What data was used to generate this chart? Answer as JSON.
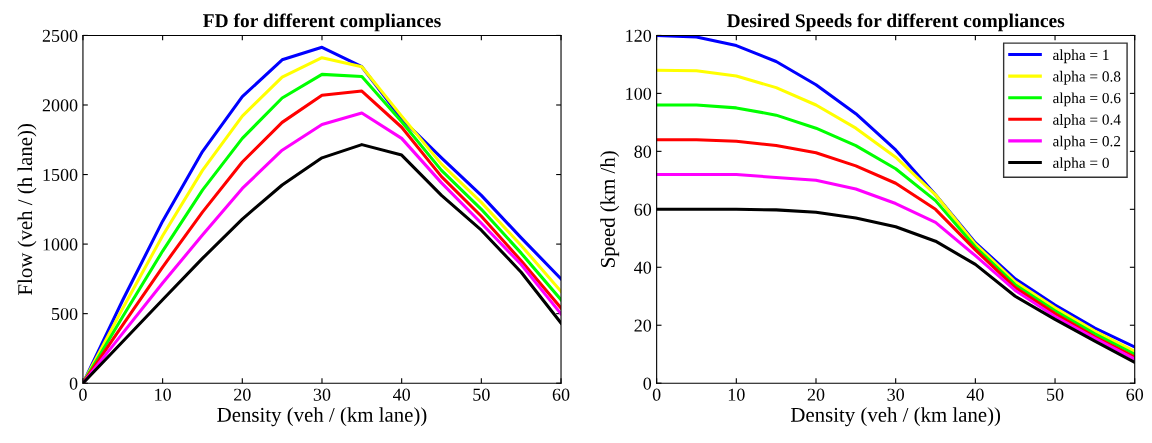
{
  "chart_data": [
    {
      "type": "line",
      "title": "FD for different compliances",
      "xlabel": "Density (veh / (km lane))",
      "ylabel": "Flow (veh / (h lane))",
      "x": [
        0,
        5,
        10,
        15,
        20,
        25,
        30,
        35,
        40,
        45,
        50,
        55,
        60
      ],
      "xlim": [
        0,
        60
      ],
      "xticks": [
        0,
        10,
        20,
        30,
        40,
        50,
        60
      ],
      "ylim": [
        0,
        2500
      ],
      "yticks": [
        0,
        500,
        1000,
        1500,
        2000,
        2500
      ],
      "grid": false,
      "legend": false,
      "series": [
        {
          "color": "#0000ff",
          "values": [
            0,
            598,
            1165,
            1665,
            2060,
            2325,
            2415,
            2275,
            1900,
            1620,
            1350,
            1045,
            750
          ]
        },
        {
          "color": "#ffff00",
          "values": [
            0,
            539,
            1060,
            1530,
            1920,
            2200,
            2340,
            2275,
            1920,
            1575,
            1300,
            990,
            660
          ]
        },
        {
          "color": "#00ff00",
          "values": [
            0,
            480,
            950,
            1388,
            1760,
            2050,
            2220,
            2205,
            1880,
            1530,
            1250,
            935,
            600
          ]
        },
        {
          "color": "#ff0000",
          "values": [
            0,
            420,
            835,
            1230,
            1590,
            1875,
            2070,
            2100,
            1840,
            1485,
            1200,
            880,
            540
          ]
        },
        {
          "color": "#ff00ff",
          "values": [
            0,
            360,
            720,
            1065,
            1400,
            1675,
            1860,
            1943,
            1760,
            1440,
            1150,
            853,
            498
          ]
        },
        {
          "color": "#000000",
          "values": [
            0,
            300,
            600,
            897,
            1180,
            1425,
            1620,
            1715,
            1640,
            1350,
            1100,
            798,
            432
          ]
        }
      ]
    },
    {
      "type": "line",
      "title": "Desired Speeds for different compliances",
      "xlabel": "Density (veh / (km lane))",
      "ylabel": "Speed (km /h)",
      "x": [
        0,
        5,
        10,
        15,
        20,
        25,
        30,
        35,
        40,
        45,
        50,
        55,
        60
      ],
      "xlim": [
        0,
        60
      ],
      "xticks": [
        0,
        10,
        20,
        30,
        40,
        50,
        60
      ],
      "ylim": [
        0,
        120
      ],
      "yticks": [
        0,
        20,
        40,
        60,
        80,
        100,
        120
      ],
      "grid": false,
      "legend": "top right",
      "series": [
        {
          "name": "alpha = 1",
          "color": "#0000ff",
          "values": [
            120,
            119.5,
            116.5,
            111,
            103,
            93,
            80.5,
            65,
            48.5,
            36,
            27,
            19,
            12.5
          ]
        },
        {
          "name": "alpha = 0.8",
          "color": "#ffff00",
          "values": [
            108,
            107.8,
            106,
            102,
            96,
            88,
            78,
            65,
            48,
            35,
            26,
            18,
            11
          ]
        },
        {
          "name": "alpha = 0.6",
          "color": "#00ff00",
          "values": [
            96,
            96,
            95,
            92.5,
            88,
            82,
            74,
            63,
            47,
            34,
            25,
            17,
            10
          ]
        },
        {
          "name": "alpha = 0.4",
          "color": "#ff0000",
          "values": [
            84,
            84,
            83.5,
            82,
            79.5,
            75,
            69,
            60,
            46,
            33,
            24,
            16,
            9
          ]
        },
        {
          "name": "alpha = 0.2",
          "color": "#ff00ff",
          "values": [
            72,
            72,
            72,
            71,
            70,
            67,
            62,
            55.5,
            44,
            32,
            23,
            15.5,
            8.3
          ]
        },
        {
          "name": "alpha = 0",
          "color": "#000000",
          "values": [
            60,
            60,
            60,
            59.8,
            59,
            57,
            54,
            49,
            41,
            30,
            22,
            14.5,
            7.2
          ]
        }
      ]
    }
  ]
}
